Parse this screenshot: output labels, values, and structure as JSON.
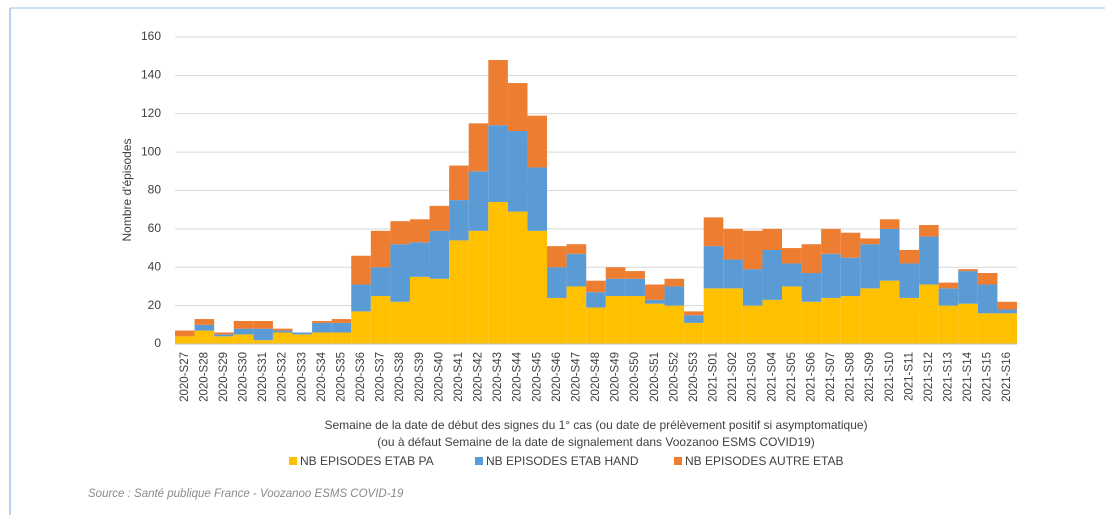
{
  "chart_data": {
    "type": "stacked-bar",
    "ylabel": "Nombre d'épisodes",
    "xlabel": [
      "Semaine de la date de début des signes du 1° cas  (ou date de prélèvement positif si asymptomatique)",
      "(ou à défaut Semaine de la date de signalement dans Voozanoo ESMS COVID19)"
    ],
    "source": "Source : Santé publique France - Voozanoo ESMS COVID-19",
    "categories": [
      "2020-S27",
      "2020-S28",
      "2020-S29",
      "2020-S30",
      "2020-S31",
      "2020-S32",
      "2020-S33",
      "2020-S34",
      "2020-S35",
      "2020-S36",
      "2020-S37",
      "2020-S38",
      "2020-S39",
      "2020-S40",
      "2020-S41",
      "2020-S42",
      "2020-S43",
      "2020-S44",
      "2020-S45",
      "2020-S46",
      "2020-S47",
      "2020-S48",
      "2020-S49",
      "2020-S50",
      "2020-S51",
      "2020-S52",
      "2020-S53",
      "2021-S01",
      "2021-S02",
      "2021-S03",
      "2021-S04",
      "2021-S05",
      "2021-S06",
      "2021-S07",
      "2021-S08",
      "2021-S09",
      "2021-S10",
      "2021-S11",
      "2021-S12",
      "2021-S13",
      "2021-S14",
      "2021-S15",
      "2021-S16"
    ],
    "series": [
      {
        "name": "NB EPISODES ETAB PA",
        "color": "#FFC000",
        "values": [
          4,
          7,
          4,
          5,
          2,
          6,
          5,
          6,
          6,
          17,
          25,
          22,
          35,
          34,
          54,
          59,
          74,
          69,
          59,
          24,
          30,
          19,
          25,
          25,
          21,
          20,
          11,
          29,
          29,
          20,
          23,
          30,
          22,
          24,
          25,
          29,
          33,
          24,
          31,
          20,
          21,
          16,
          16
        ]
      },
      {
        "name": "NB EPISODES ETAB HAND",
        "color": "#5B9BD5",
        "values": [
          0,
          3,
          1,
          3,
          6,
          1,
          1,
          5,
          5,
          14,
          15,
          30,
          18,
          25,
          21,
          31,
          40,
          42,
          33,
          16,
          17,
          8,
          9,
          9,
          2,
          10,
          4,
          22,
          15,
          19,
          26,
          12,
          15,
          23,
          20,
          23,
          27,
          18,
          25,
          9,
          17,
          15,
          2
        ]
      },
      {
        "name": "NB EPISODES AUTRE ETAB",
        "color": "#ED7D31",
        "values": [
          3,
          3,
          1,
          4,
          4,
          1,
          0,
          1,
          2,
          15,
          19,
          12,
          12,
          13,
          18,
          25,
          34,
          25,
          27,
          11,
          5,
          6,
          6,
          4,
          8,
          4,
          2,
          15,
          16,
          20,
          11,
          8,
          15,
          13,
          13,
          3,
          5,
          7,
          6,
          3,
          1,
          6,
          4
        ]
      }
    ],
    "ylim": [
      0,
      160
    ],
    "yticks": [
      0,
      20,
      40,
      60,
      80,
      100,
      120,
      140,
      160
    ],
    "grid": true,
    "legend": "bottom"
  }
}
